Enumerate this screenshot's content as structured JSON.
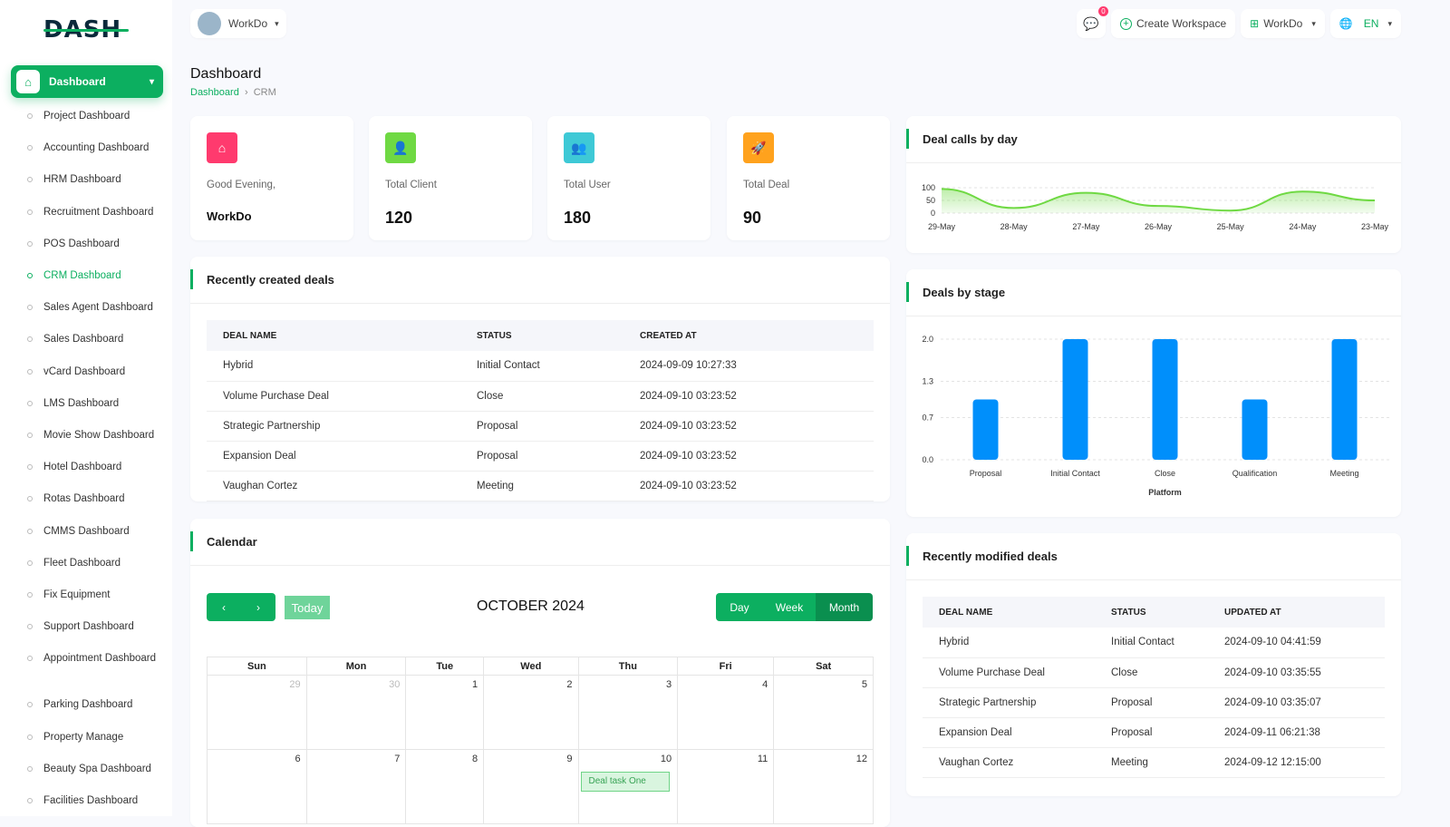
{
  "brand": {
    "logo": "DASH"
  },
  "header": {
    "workspace": "WorkDo",
    "notifications": "0",
    "create_workspace": "Create Workspace",
    "workspace2": "WorkDo",
    "language": "EN"
  },
  "sidebar": {
    "active": "Dashboard",
    "items": [
      {
        "label": "Project Dashboard"
      },
      {
        "label": "Accounting Dashboard"
      },
      {
        "label": "HRM Dashboard"
      },
      {
        "label": "Recruitment Dashboard"
      },
      {
        "label": "POS Dashboard"
      },
      {
        "label": "CRM Dashboard",
        "active": true
      },
      {
        "label": "Sales Agent Dashboard"
      },
      {
        "label": "Sales Dashboard"
      },
      {
        "label": "vCard Dashboard"
      },
      {
        "label": "LMS Dashboard"
      },
      {
        "label": "Movie Show Dashboard"
      },
      {
        "label": "Hotel Dashboard"
      },
      {
        "label": "Rotas Dashboard"
      },
      {
        "label": "CMMS Dashboard"
      },
      {
        "label": "Fleet Dashboard"
      },
      {
        "label": "Fix Equipment"
      },
      {
        "label": "Support Dashboard"
      },
      {
        "label": "Appointment Dashboard"
      },
      {
        "label": "Parking Dashboard"
      },
      {
        "label": "Property Manage"
      },
      {
        "label": "Beauty Spa Dashboard"
      },
      {
        "label": "Facilities Dashboard"
      }
    ]
  },
  "page": {
    "title": "Dashboard",
    "breadcrumb": [
      "Dashboard",
      "CRM"
    ]
  },
  "stats": [
    {
      "label": "Good Evening,",
      "value": "WorkDo",
      "color": "#ff3a6e",
      "icon": "home-icon"
    },
    {
      "label": "Total Client",
      "value": "120",
      "color": "#6fd943",
      "icon": "user-icon"
    },
    {
      "label": "Total User",
      "value": "180",
      "color": "#3ec9d6",
      "icon": "users-icon"
    },
    {
      "label": "Total Deal",
      "value": "90",
      "color": "#ffa21d",
      "icon": "rocket-icon"
    }
  ],
  "recent_deals": {
    "title": "Recently created deals",
    "columns": [
      "DEAL NAME",
      "STATUS",
      "CREATED AT"
    ],
    "rows": [
      [
        "Hybrid",
        "Initial Contact",
        "2024-09-09 10:27:33"
      ],
      [
        "Volume Purchase Deal",
        "Close",
        "2024-09-10 03:23:52"
      ],
      [
        "Strategic Partnership",
        "Proposal",
        "2024-09-10 03:23:52"
      ],
      [
        "Expansion Deal",
        "Proposal",
        "2024-09-10 03:23:52"
      ],
      [
        "Vaughan Cortez",
        "Meeting",
        "2024-09-10 03:23:52"
      ]
    ]
  },
  "calendar": {
    "title": "Calendar",
    "today": "Today",
    "month": "OCTOBER 2024",
    "views": [
      "Day",
      "Week",
      "Month"
    ],
    "active_view": "Month",
    "days": [
      "Sun",
      "Mon",
      "Tue",
      "Wed",
      "Thu",
      "Fri",
      "Sat"
    ],
    "weeks": [
      [
        "29",
        "30",
        "1",
        "2",
        "3",
        "4",
        "5"
      ],
      [
        "6",
        "7",
        "8",
        "9",
        "10",
        "11",
        "12"
      ]
    ],
    "event": {
      "day": "10",
      "title": "Deal task One"
    }
  },
  "modified_deals": {
    "title": "Recently modified deals",
    "columns": [
      "DEAL NAME",
      "STATUS",
      "UPDATED AT"
    ],
    "rows": [
      [
        "Hybrid",
        "Initial Contact",
        "2024-09-10 04:41:59"
      ],
      [
        "Volume Purchase Deal",
        "Close",
        "2024-09-10 03:35:55"
      ],
      [
        "Strategic Partnership",
        "Proposal",
        "2024-09-10 03:35:07"
      ],
      [
        "Expansion Deal",
        "Proposal",
        "2024-09-11 06:21:38"
      ],
      [
        "Vaughan Cortez",
        "Meeting",
        "2024-09-12 12:15:00"
      ]
    ]
  },
  "chart_data": [
    {
      "type": "area",
      "title": "Deal calls by day",
      "categories": [
        "29-May",
        "28-May",
        "27-May",
        "26-May",
        "25-May",
        "24-May",
        "23-May"
      ],
      "values": [
        95,
        20,
        80,
        28,
        10,
        85,
        50
      ],
      "yticks": [
        "0",
        "50",
        "100"
      ],
      "ylim": [
        0,
        100
      ],
      "color": "#6fd943"
    },
    {
      "type": "bar",
      "title": "Deals by stage",
      "categories": [
        "Proposal",
        "Initial Contact",
        "Close",
        "Qualification",
        "Meeting"
      ],
      "values": [
        1,
        2,
        2,
        1,
        2
      ],
      "yticks": [
        "0.0",
        "0.7",
        "1.3",
        "2.0"
      ],
      "ylim": [
        0,
        2
      ],
      "xlabel": "Platform",
      "color": "#008ffb"
    }
  ]
}
